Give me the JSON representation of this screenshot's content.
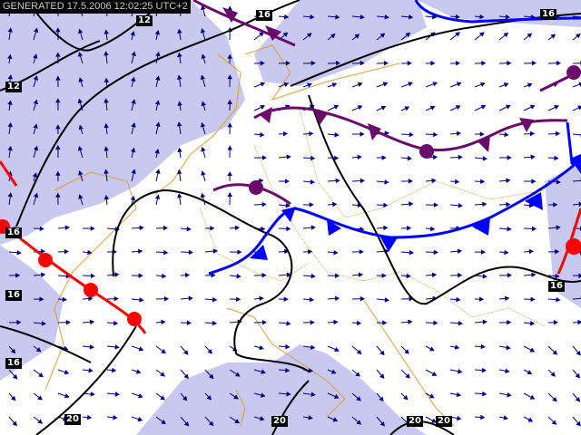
{
  "header": {
    "generated": "GENERATED 17.5.2006 12:02:25 UTC+2"
  },
  "colors": {
    "shade": "#c8c8f0",
    "wind_arrows": "#000080",
    "coast": "#d8a040",
    "isobar": "#000000",
    "cold_front": "#0000ff",
    "warm_front": "#ff0000",
    "occluded_front": "#6a0a6a"
  },
  "isobar_labels": [
    "12",
    "16",
    "16",
    "12",
    "16",
    "16",
    "16",
    "20",
    "20",
    "20",
    "20",
    "16"
  ],
  "layers": {
    "wind": "wind-arrow-icon",
    "pressure": "isobars",
    "fronts": [
      "cold",
      "warm",
      "occluded"
    ]
  }
}
